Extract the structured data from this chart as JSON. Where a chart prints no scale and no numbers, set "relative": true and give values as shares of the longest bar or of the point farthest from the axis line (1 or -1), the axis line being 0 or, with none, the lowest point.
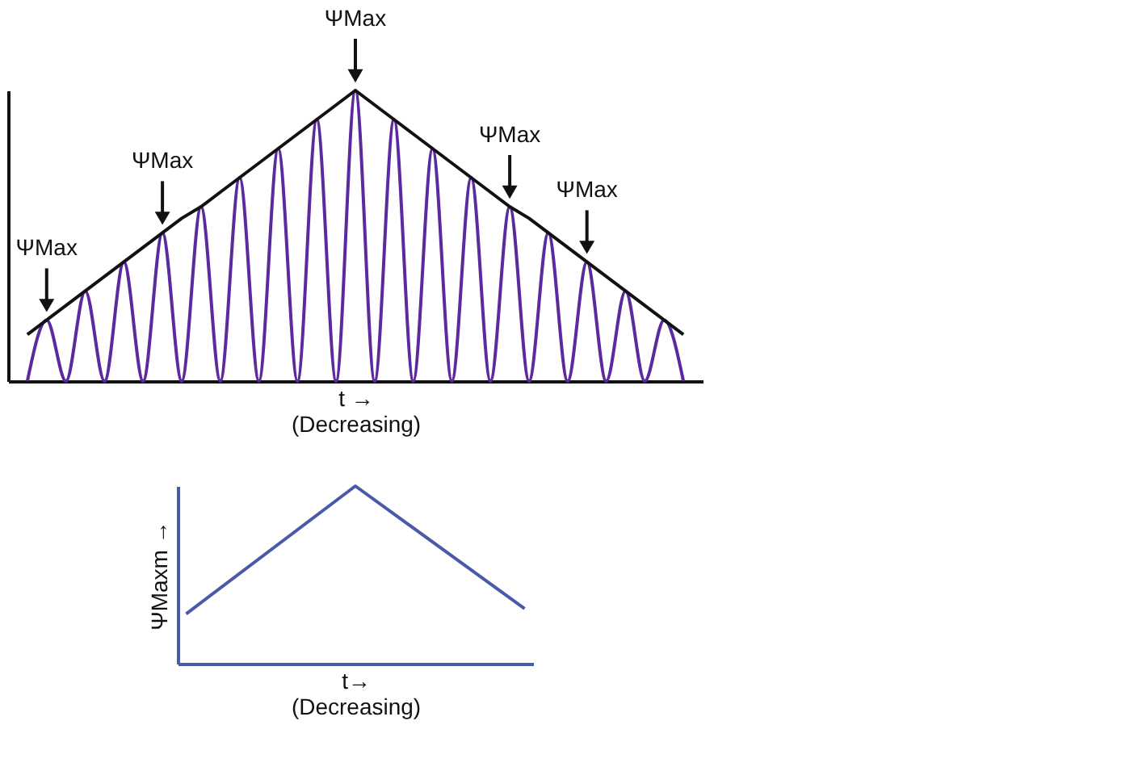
{
  "chart_data": [
    {
      "type": "line",
      "relative": true,
      "tick_labels": false,
      "grid": false,
      "marker": "none",
      "xlabel": "t →\n(Decreasing)",
      "categories": [
        null,
        null,
        null,
        null,
        null,
        null,
        null,
        null,
        null,
        null,
        null,
        null,
        null,
        null,
        null,
        null,
        null,
        null,
        null,
        null,
        null,
        null,
        null,
        null,
        null,
        null,
        null,
        null,
        null,
        null,
        null,
        null,
        null,
        null,
        null
      ],
      "series": [
        {
          "color": "#5b2a9e",
          "values": [
            0,
            0.21,
            0,
            0.31,
            0,
            0.41,
            0,
            0.51,
            0,
            0.6,
            0,
            0.7,
            0,
            0.8,
            0,
            0.9,
            0,
            1,
            0,
            0.9,
            0,
            0.8,
            0,
            0.7,
            0,
            0.6,
            0,
            0.51,
            0,
            0.41,
            0,
            0.31,
            0,
            0.21,
            0
          ]
        },
        {
          "color": "#111111",
          "values": [
            0.16,
            0.21,
            0.26,
            0.31,
            0.36,
            0.41,
            0.46,
            0.51,
            0.56,
            0.6,
            0.65,
            0.7,
            0.75,
            0.8,
            0.85,
            0.9,
            0.95,
            1,
            0.95,
            0.9,
            0.85,
            0.8,
            0.75,
            0.7,
            0.65,
            0.6,
            0.56,
            0.51,
            0.46,
            0.41,
            0.36,
            0.31,
            0.26,
            0.21,
            0.16
          ]
        }
      ],
      "annotations": [
        {
          "text": "ΨMax",
          "y": 0.21
        },
        {
          "text": "ΨMax",
          "y": 0.51
        },
        {
          "text": "ΨMax",
          "y": 1
        },
        {
          "text": "ΨMax",
          "y": 0.6
        },
        {
          "text": "ΨMax",
          "y": 0.41
        }
      ]
    },
    {
      "type": "line",
      "relative": true,
      "tick_labels": false,
      "grid": false,
      "marker": "none",
      "xlabel": "t→\n(Decreasing)",
      "ylabel": "ΨMaxm →",
      "categories": [
        null,
        null,
        null
      ],
      "series": [
        {
          "color": "#4a5aa8",
          "values": [
            0.28,
            1,
            0.31
          ]
        }
      ]
    }
  ]
}
